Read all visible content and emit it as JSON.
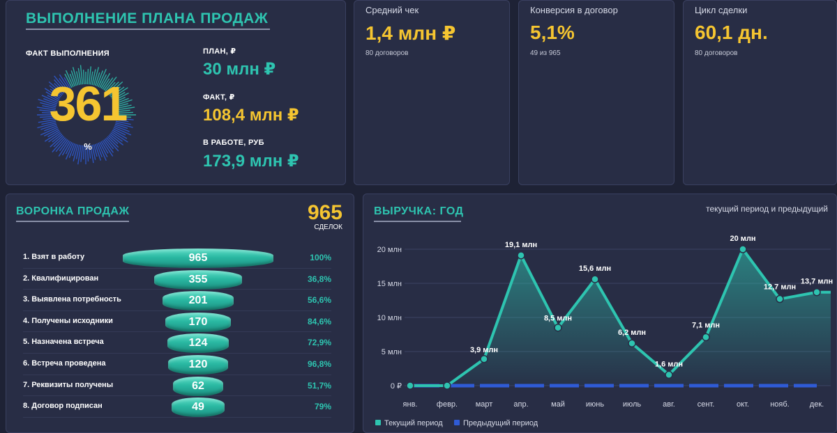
{
  "plan": {
    "title": "ВЫПОЛНЕНИЕ ПЛАНА ПРОДАЖ",
    "fact_label": "ФАКТ ВЫПОЛНЕНИЯ",
    "percent_value": "361",
    "percent_sign": "%",
    "plan_label": "ПЛАН, ₽",
    "plan_value": "30 млн ₽",
    "fact_value_label": "ФАКТ, ₽",
    "fact_value": "108,4 млн ₽",
    "in_work_label": "В РАБОТЕ, РУБ",
    "in_work_value": "173,9 млн ₽"
  },
  "kpis": [
    {
      "label": "Средний чек",
      "value": "1,4 млн ₽",
      "sub": "80 договоров"
    },
    {
      "label": "Конверсия в договор",
      "value": "5,1%",
      "sub": "49 из 965"
    },
    {
      "label": "Цикл сделки",
      "value": "60,1 дн.",
      "sub": "80 договоров"
    }
  ],
  "funnel": {
    "title": "ВОРОНКА ПРОДАЖ",
    "total": "965",
    "total_label": "СДЕЛОК",
    "stages": [
      {
        "label": "1. Взят в работу",
        "value": 965,
        "pct": "100%"
      },
      {
        "label": "2. Квалифицирован",
        "value": 355,
        "pct": "36,8%"
      },
      {
        "label": "3. Выявлена потребность",
        "value": 201,
        "pct": "56,6%"
      },
      {
        "label": "4. Получены исходники",
        "value": 170,
        "pct": "84,6%"
      },
      {
        "label": "5. Назначена встреча",
        "value": 124,
        "pct": "72,9%"
      },
      {
        "label": "6. Встреча проведена",
        "value": 120,
        "pct": "96,8%"
      },
      {
        "label": "7. Реквизиты получены",
        "value": 62,
        "pct": "51,7%"
      },
      {
        "label": "8. Договор подписан",
        "value": 49,
        "pct": "79%"
      }
    ]
  },
  "revenue": {
    "title": "ВЫРУЧКА: ГОД",
    "subtitle": "текущий период и предыдущий"
  },
  "colors": {
    "teal": "#2ec4b0",
    "yellow": "#f5c531",
    "blue": "#2f5bd6",
    "card": "#282d45",
    "background": "#1e2235"
  },
  "chart_data": {
    "type": "area",
    "categories": [
      "янв.",
      "февр.",
      "март",
      "апр.",
      "май",
      "июнь",
      "июль",
      "авг.",
      "сент.",
      "окт.",
      "нояб.",
      "дек."
    ],
    "yticks": [
      "0 ₽",
      "5 млн",
      "10 млн",
      "15 млн",
      "20 млн"
    ],
    "ylim": [
      0,
      20
    ],
    "series": [
      {
        "name": "Текущий период",
        "color": "#2ec4b0",
        "values": [
          0,
          0,
          3.9,
          19.1,
          8.5,
          15.6,
          6.2,
          1.6,
          7.1,
          20,
          12.7,
          13.7
        ],
        "labels": [
          "",
          "",
          "3,9 млн",
          "19,1 млн",
          "8,5 млн",
          "15,6 млн",
          "6,2 млн",
          "1,6 млн",
          "7,1 млн",
          "20 млн",
          "12,7 млн",
          "13,7 млн"
        ]
      },
      {
        "name": "Предыдущий период",
        "color": "#2f5bd6",
        "values": [
          0,
          0,
          0,
          0,
          0,
          0,
          0,
          0,
          0,
          0,
          0,
          0
        ]
      }
    ],
    "grid": true,
    "legend": "bottom-left"
  }
}
